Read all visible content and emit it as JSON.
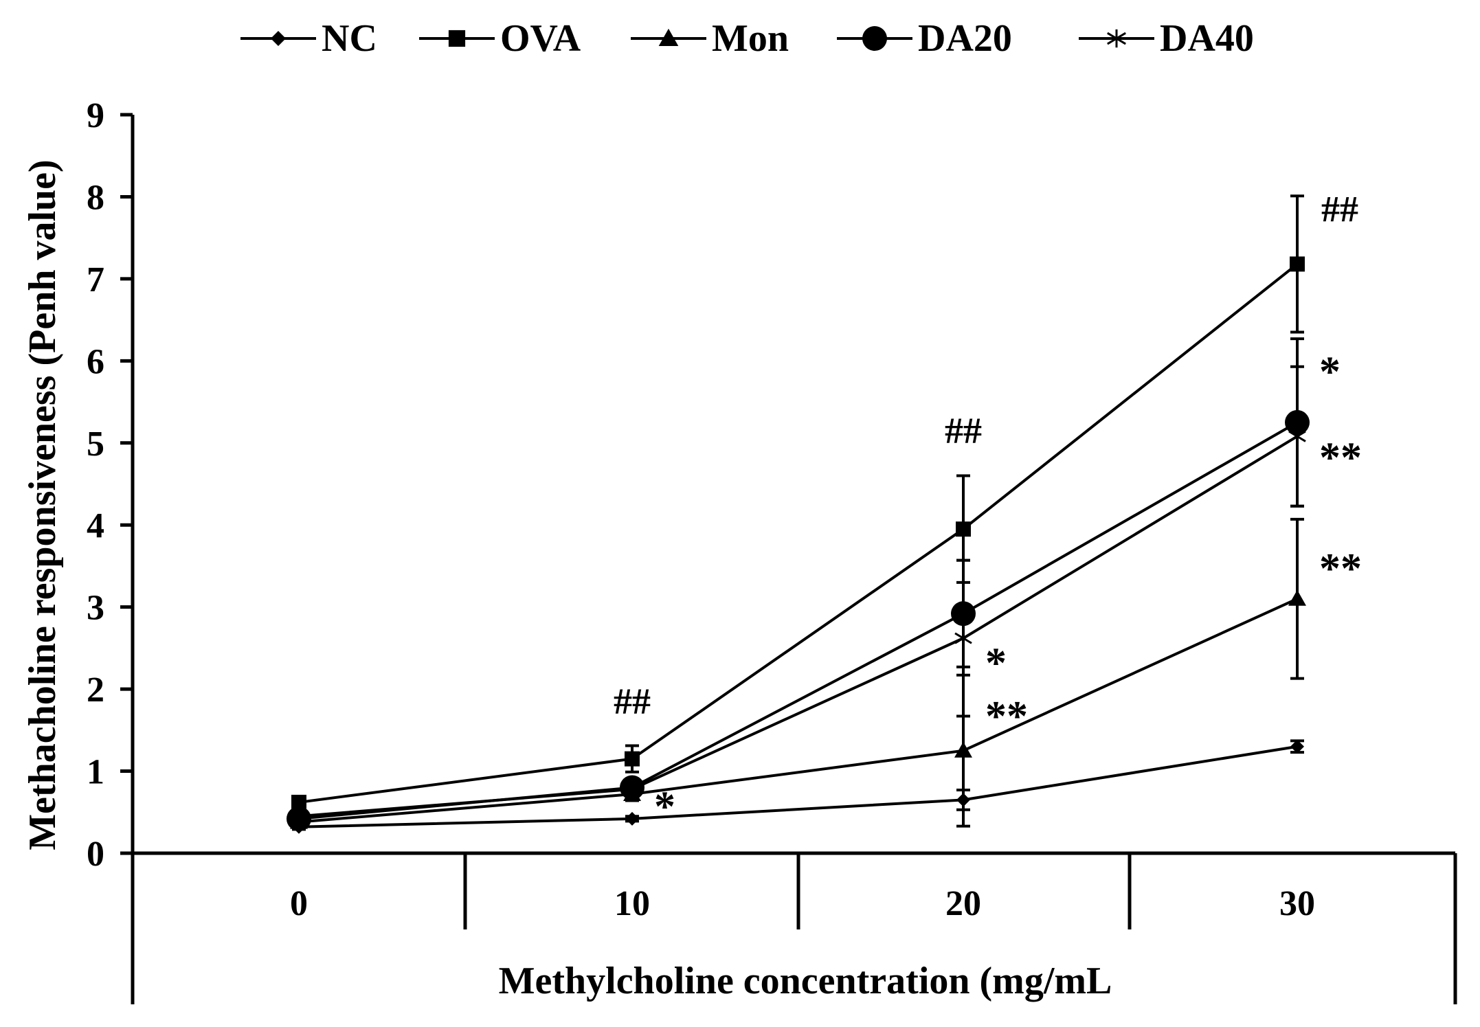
{
  "chart_data": {
    "type": "line",
    "title": "",
    "xlabel": "Methylcholine concentration (mg/mL",
    "ylabel": "Methacholine responsiveness (Penh value)",
    "categories": [
      "0",
      "10",
      "20",
      "30"
    ],
    "ylim": [
      0,
      9
    ],
    "yticks": [
      "0",
      "1",
      "2",
      "3",
      "4",
      "5",
      "6",
      "7",
      "8",
      "9"
    ],
    "legend_position": "top",
    "series": [
      {
        "name": "NC",
        "marker": "diamond",
        "values": [
          0.32,
          0.42,
          0.65,
          1.3
        ],
        "errors": [
          0.03,
          0.03,
          0.12,
          0.07
        ]
      },
      {
        "name": "OVA",
        "marker": "square",
        "values": [
          0.62,
          1.15,
          3.95,
          7.18
        ],
        "errors": [
          0.05,
          0.16,
          0.65,
          0.83
        ]
      },
      {
        "name": "Mon",
        "marker": "triangle",
        "values": [
          0.38,
          0.72,
          1.25,
          3.1
        ],
        "errors": [
          0.04,
          0.08,
          0.92,
          0.97
        ]
      },
      {
        "name": "DA20",
        "marker": "circle",
        "values": [
          0.42,
          0.8,
          2.92,
          5.25
        ],
        "errors": [
          0.05,
          0.1,
          0.65,
          1.02
        ]
      },
      {
        "name": "DA40",
        "marker": "asterisk",
        "values": [
          0.45,
          0.78,
          2.62,
          5.08
        ],
        "errors": [
          0.05,
          0.08,
          0.95,
          0.85
        ]
      }
    ],
    "annotations": [
      {
        "text": "##",
        "x": "10",
        "y": 1.85
      },
      {
        "text": "##",
        "x": "20",
        "y": 5.15
      },
      {
        "text": "##",
        "x": "30",
        "y": 7.85
      },
      {
        "text": "*",
        "x": "10",
        "y": 0.55
      },
      {
        "text": "*",
        "x": "20",
        "y": 2.3
      },
      {
        "text": "**",
        "x": "20",
        "y": 1.65
      },
      {
        "text": "*",
        "x": "30",
        "y": 5.85
      },
      {
        "text": "**",
        "x": "30",
        "y": 4.8
      },
      {
        "text": "**",
        "x": "30",
        "y": 3.45
      }
    ]
  }
}
